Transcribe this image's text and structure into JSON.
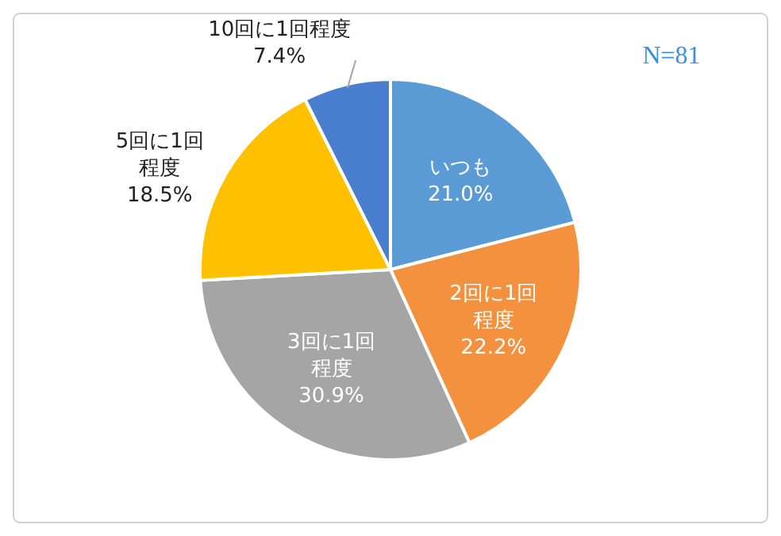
{
  "chart_data": {
    "type": "pie",
    "categories": [
      "いつも",
      "2回に1回程度",
      "3回に1回程度",
      "5回に1回程度",
      "10回に1回程度"
    ],
    "values": [
      21.0,
      22.2,
      30.9,
      18.5,
      7.4
    ],
    "value_labels": [
      "21.0%",
      "22.2%",
      "30.9%",
      "18.5%",
      "7.4%"
    ],
    "colors": [
      "#5b9bd5",
      "#f4913f",
      "#a5a5a5",
      "#ffc000",
      "#4a7fcf"
    ],
    "annotations": [
      "N=81"
    ]
  }
}
